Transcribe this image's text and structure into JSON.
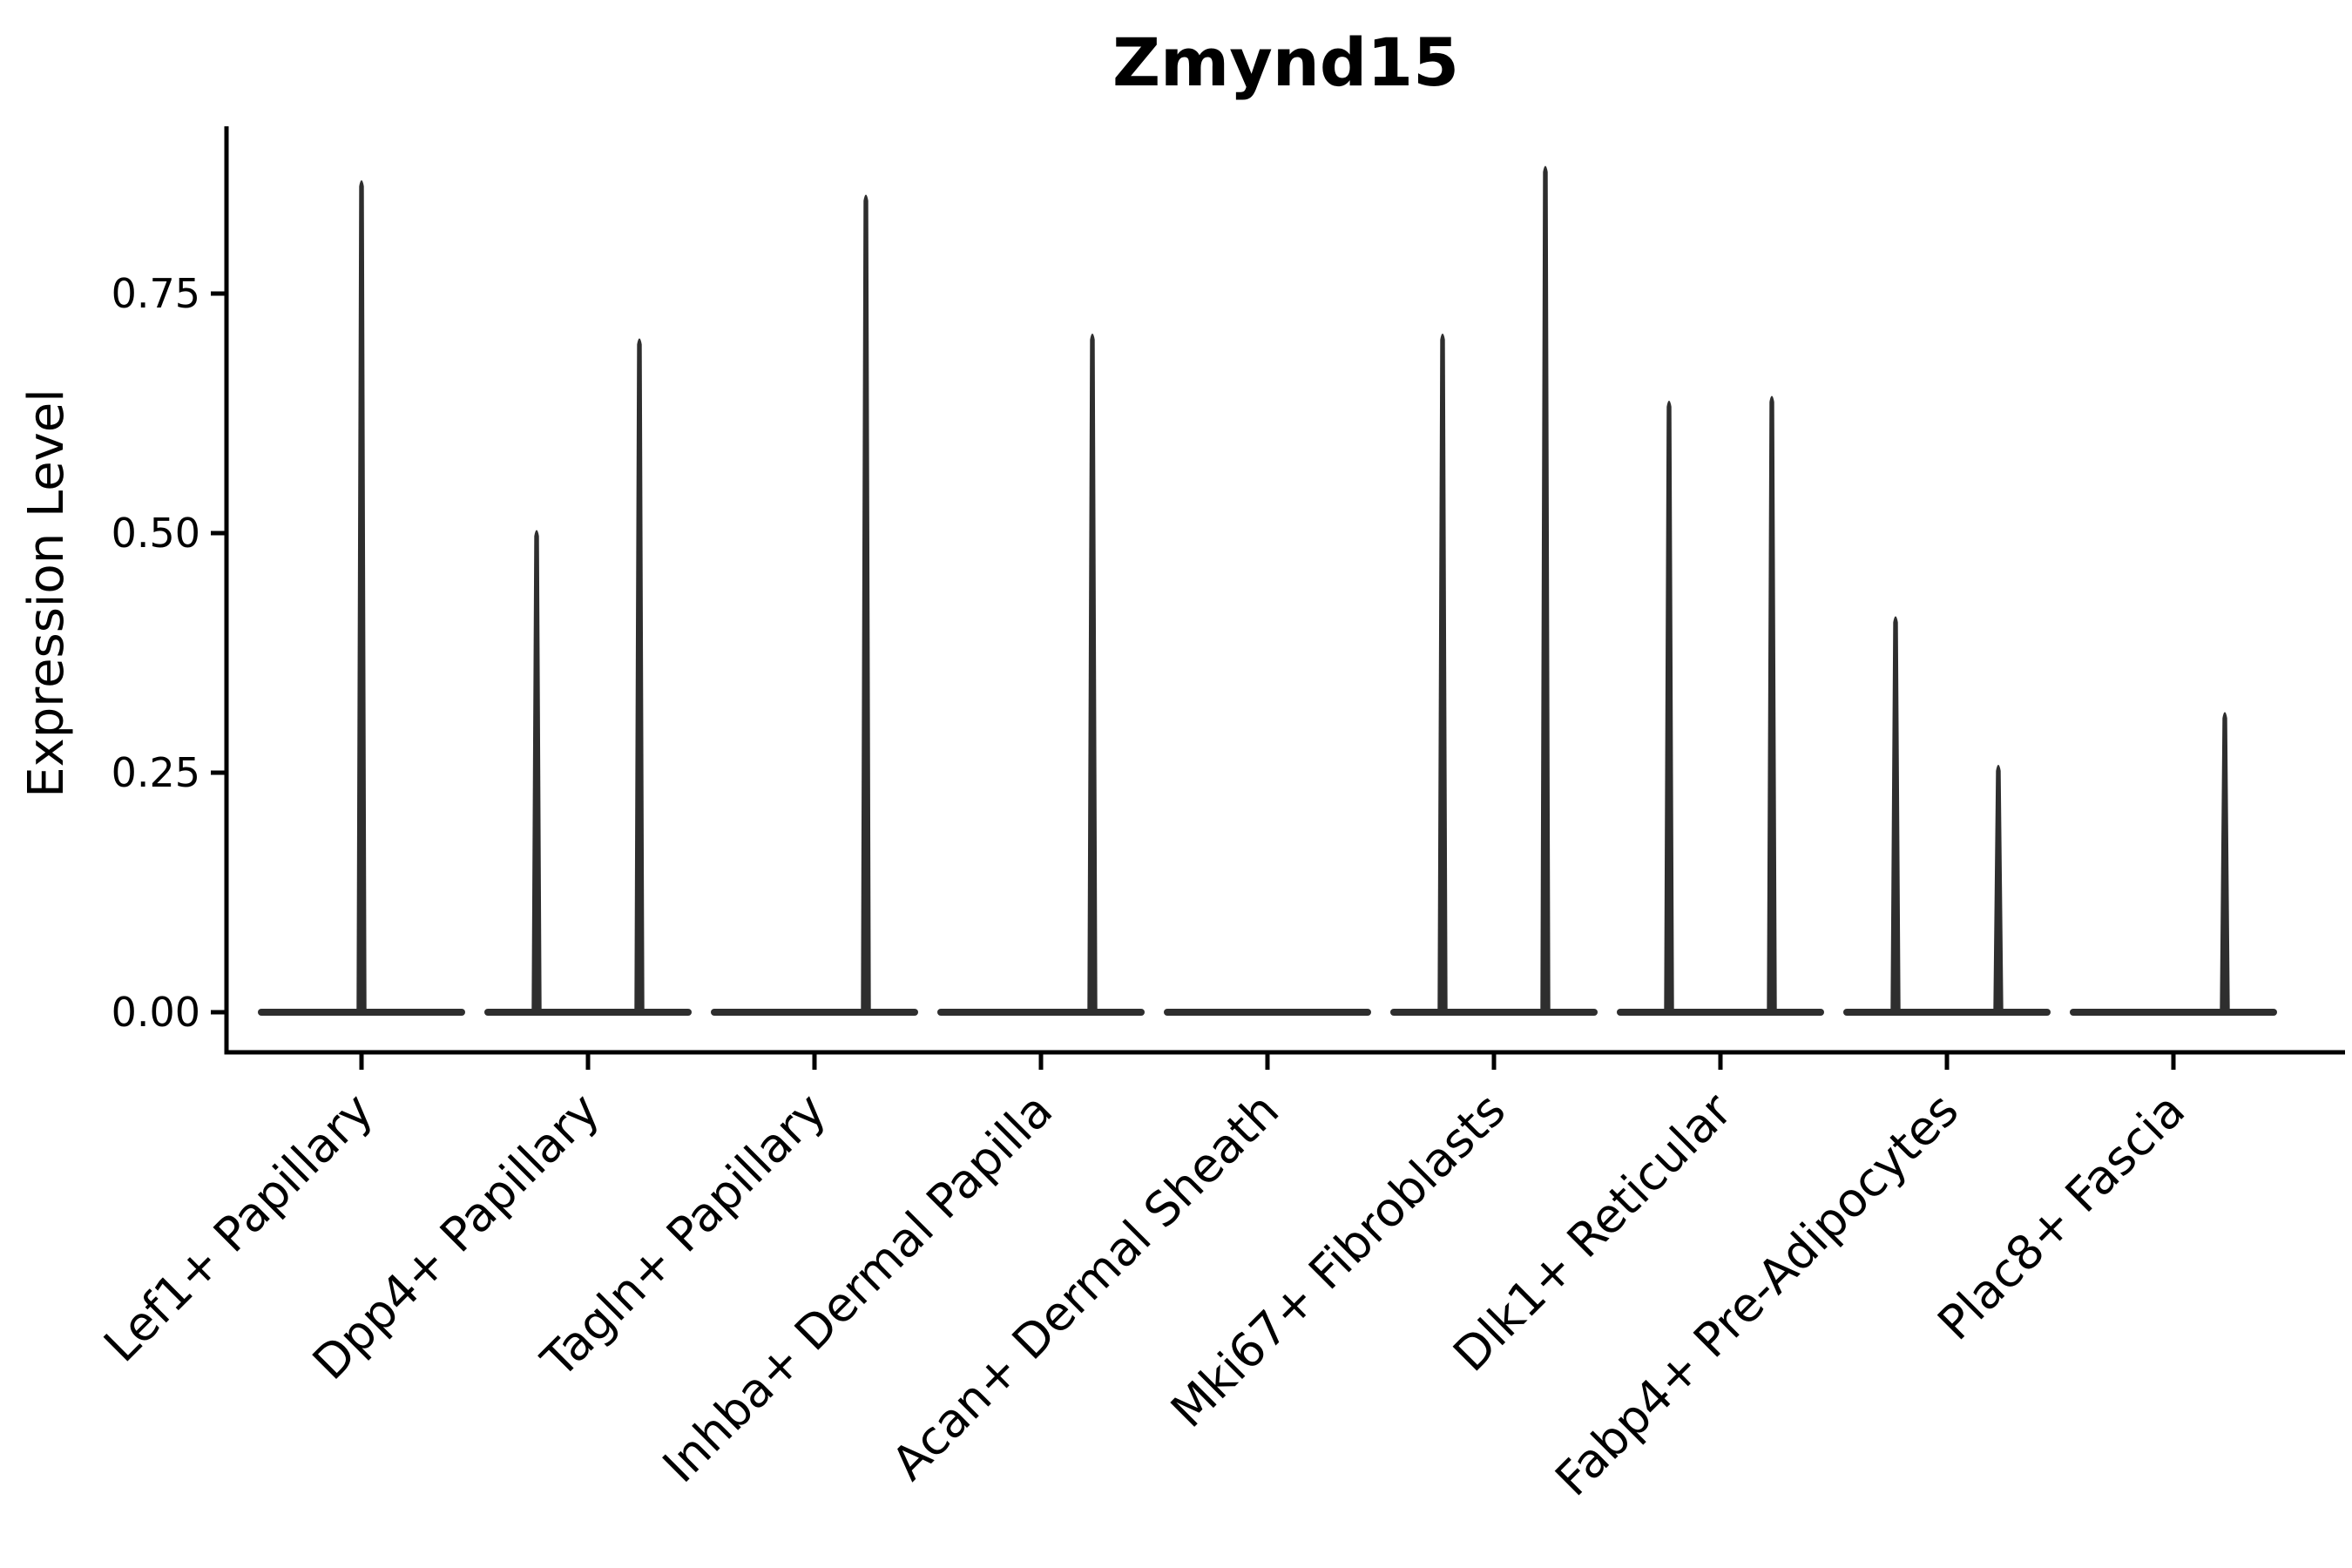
{
  "chart_data": {
    "type": "violin",
    "title": "Zmynd15",
    "ylabel": "Expression Level",
    "xlabel": "",
    "legend": "none",
    "grid": "off",
    "background": "#ffffff",
    "ink_color": "#2e2e2e",
    "axis_color": "#000000",
    "y_tick_labels": [
      "0.00",
      "0.25",
      "0.50",
      "0.75"
    ],
    "y_ticks": [
      0.0,
      0.25,
      0.5,
      0.75
    ],
    "ylim": [
      0,
      0.925
    ],
    "categories": [
      "Lef1+ Papillary",
      "Dpp4+ Papillary",
      "Tagln+ Papillary",
      "Inhba+ Dermal Papilla",
      "Acan+ Dermal Sheath",
      "Mki67+ Fibroblasts",
      "Dlk1+ Reticular",
      "Fabp4+ Pre-Adipocytes",
      "Plac8+ Fascia"
    ],
    "violins": [
      {
        "category": "Lef1+ Papillary",
        "baseline": 0,
        "spikes": [
          {
            "position": "center",
            "max": 0.87
          }
        ]
      },
      {
        "category": "Dpp4+ Papillary",
        "baseline": 0,
        "spikes": [
          {
            "position": "left",
            "max": 0.505
          },
          {
            "position": "right",
            "max": 0.705
          }
        ]
      },
      {
        "category": "Tagln+ Papillary",
        "baseline": 0,
        "spikes": [
          {
            "position": "right",
            "max": 0.855
          }
        ]
      },
      {
        "category": "Inhba+ Dermal Papilla",
        "baseline": 0,
        "spikes": [
          {
            "position": "right",
            "max": 0.71
          }
        ]
      },
      {
        "category": "Acan+ Dermal Sheath",
        "baseline": 0,
        "spikes": []
      },
      {
        "category": "Mki67+ Fibroblasts",
        "baseline": 0,
        "spikes": [
          {
            "position": "left",
            "max": 0.71
          },
          {
            "position": "right",
            "max": 0.885
          }
        ]
      },
      {
        "category": "Dlk1+ Reticular",
        "baseline": 0,
        "spikes": [
          {
            "position": "left",
            "max": 0.64
          },
          {
            "position": "right",
            "max": 0.645
          }
        ]
      },
      {
        "category": "Fabp4+ Pre-Adipocytes",
        "baseline": 0,
        "spikes": [
          {
            "position": "left",
            "max": 0.415
          },
          {
            "position": "right",
            "max": 0.26
          }
        ]
      },
      {
        "category": "Plac8+ Fascia",
        "baseline": 0,
        "spikes": [
          {
            "position": "right",
            "max": 0.315
          }
        ]
      }
    ]
  }
}
